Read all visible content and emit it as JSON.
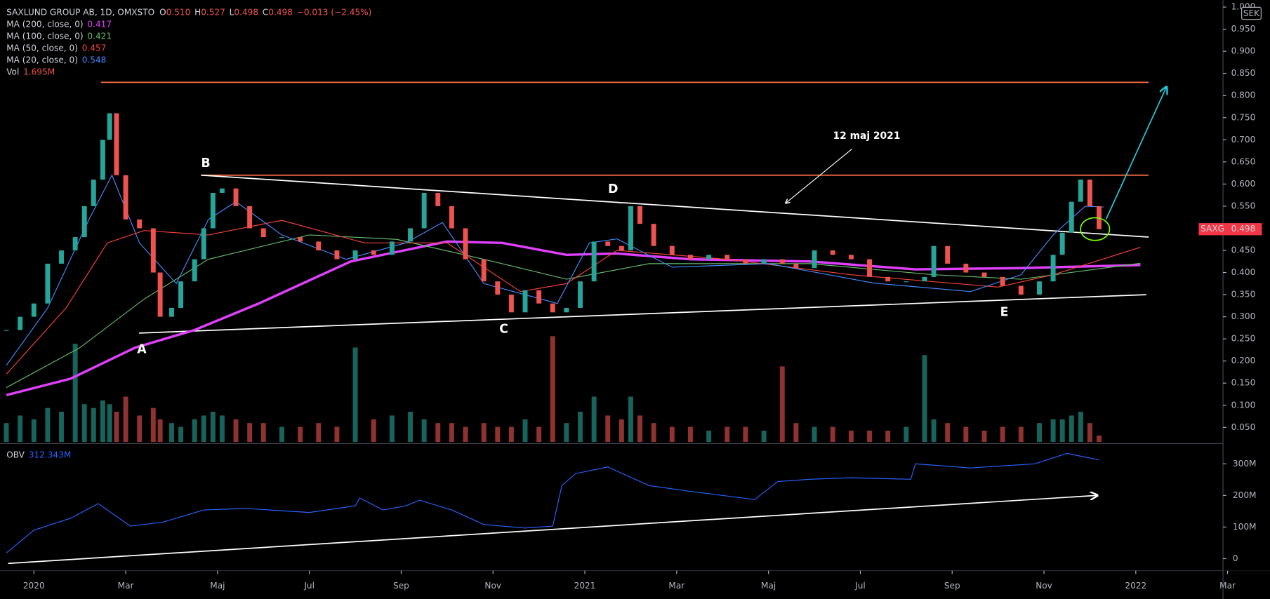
{
  "header": {
    "title": "SAXLUND GROUP AB, 1D, OMXSTO",
    "ohlc": [
      {
        "key": "O",
        "value": "0.510"
      },
      {
        "key": "H",
        "value": "0.527"
      },
      {
        "key": "L",
        "value": "0.498"
      },
      {
        "key": "C",
        "value": "0.498"
      }
    ],
    "change": "−0.013 (−2.45%)"
  },
  "annotations": {
    "points": [
      "A",
      "B",
      "C",
      "D",
      "E"
    ],
    "note": "12 maj 2021"
  },
  "chart_data": [
    {
      "type": "candlestick",
      "symbol": "SAXG",
      "currency": "SEK",
      "last_label": "0.498",
      "up_color": "#26a69a",
      "down_color": "#ef5350",
      "x": [
        -0.6,
        -0.3,
        0,
        0.3,
        0.6,
        0.9,
        1.1,
        1.3,
        1.5,
        1.65,
        1.8,
        2.0,
        2.3,
        2.6,
        2.75,
        3.0,
        3.2,
        3.5,
        3.7,
        3.9,
        4.1,
        4.4,
        4.7,
        5.0,
        5.4,
        5.8,
        6.2,
        6.6,
        7.0,
        7.4,
        7.8,
        8.2,
        8.5,
        8.8,
        9.1,
        9.4,
        9.8,
        10.1,
        10.4,
        10.7,
        11.0,
        11.3,
        11.6,
        11.9,
        12.2,
        12.5,
        12.8,
        13.0,
        13.2,
        13.5,
        13.9,
        14.3,
        14.7,
        15.1,
        15.5,
        15.9,
        16.3,
        16.6,
        17.0,
        17.4,
        17.8,
        18.2,
        18.6,
        19.0,
        19.4,
        19.6,
        19.9,
        20.3,
        20.7,
        21.1,
        21.5,
        21.9,
        22.2,
        22.4,
        22.6,
        22.8,
        23.0,
        23.2
      ],
      "values": [
        0.27,
        0.3,
        0.33,
        0.42,
        0.45,
        0.48,
        0.55,
        0.61,
        0.7,
        0.76,
        0.62,
        0.52,
        0.5,
        0.4,
        0.3,
        0.32,
        0.38,
        0.43,
        0.5,
        0.58,
        0.59,
        0.55,
        0.5,
        0.48,
        0.48,
        0.47,
        0.45,
        0.43,
        0.45,
        0.44,
        0.47,
        0.5,
        0.58,
        0.55,
        0.5,
        0.43,
        0.38,
        0.35,
        0.31,
        0.36,
        0.33,
        0.31,
        0.32,
        0.38,
        0.47,
        0.46,
        0.45,
        0.55,
        0.51,
        0.46,
        0.44,
        0.43,
        0.44,
        0.43,
        0.42,
        0.43,
        0.42,
        0.41,
        0.45,
        0.44,
        0.43,
        0.39,
        0.38,
        0.38,
        0.39,
        0.46,
        0.42,
        0.4,
        0.39,
        0.37,
        0.35,
        0.38,
        0.44,
        0.49,
        0.56,
        0.61,
        0.55,
        0.498
      ],
      "volume": {
        "name": "Vol",
        "last_label": "1.695M",
        "ylim": [
          0,
          30
        ],
        "values": [
          5,
          7,
          6,
          9,
          8,
          26,
          10,
          9,
          11,
          10,
          8,
          12,
          7,
          9,
          6,
          5,
          4,
          6,
          7,
          8,
          7,
          6,
          5,
          5,
          4,
          4,
          5,
          4,
          25,
          6,
          7,
          8,
          6,
          5,
          5,
          4,
          5,
          4,
          4,
          6,
          4,
          28,
          5,
          8,
          12,
          7,
          6,
          12,
          7,
          5,
          4,
          4,
          3,
          4,
          4,
          3,
          20,
          5,
          4,
          4,
          3,
          3,
          3,
          4,
          23,
          6,
          5,
          4,
          3,
          4,
          4,
          5,
          6,
          6,
          7,
          8,
          5,
          1.695
        ]
      },
      "series": [
        {
          "name": "MA (200, close, 0)",
          "color": "#e040fb",
          "width": 3,
          "last_label": "0.417",
          "x": [
            -0.6,
            0.8,
            2.2,
            3.5,
            4.9,
            6.9,
            9.0,
            10.2,
            11.6,
            12.7,
            14.3,
            16.9,
            19.2,
            21.5,
            24.1
          ],
          "values": [
            0.123,
            0.16,
            0.23,
            0.27,
            0.33,
            0.425,
            0.47,
            0.467,
            0.44,
            0.443,
            0.43,
            0.425,
            0.407,
            0.41,
            0.417
          ]
        },
        {
          "name": "MA (100, close, 0)",
          "color": "#66bb6a",
          "width": 1,
          "last_label": "0.421",
          "x": [
            -0.6,
            1.0,
            2.4,
            3.8,
            6.0,
            7.9,
            9.8,
            11.6,
            13.4,
            16.9,
            19.6,
            21.5,
            24.1
          ],
          "values": [
            0.14,
            0.23,
            0.34,
            0.43,
            0.485,
            0.475,
            0.43,
            0.385,
            0.42,
            0.42,
            0.395,
            0.385,
            0.421
          ]
        },
        {
          "name": "MA (50, close, 0)",
          "color": "#f44336",
          "width": 1,
          "last_label": "0.457",
          "x": [
            -0.6,
            0.7,
            1.6,
            2.4,
            3.8,
            5.4,
            7.2,
            9.0,
            10.6,
            11.6,
            12.7,
            15.1,
            17.8,
            21.0,
            22.2,
            24.1
          ],
          "values": [
            0.17,
            0.32,
            0.467,
            0.495,
            0.485,
            0.518,
            0.467,
            0.467,
            0.357,
            0.375,
            0.45,
            0.43,
            0.395,
            0.367,
            0.395,
            0.457
          ]
        },
        {
          "name": "MA (20, close, 0)",
          "color": "#448aff",
          "width": 1,
          "last_label": "0.548",
          "x": [
            -0.6,
            0.3,
            1.2,
            1.7,
            2.3,
            3.1,
            3.8,
            4.4,
            5.4,
            6.8,
            8.1,
            8.9,
            9.8,
            11.4,
            12.1,
            12.7,
            13.9,
            16.0,
            18.3,
            20.4,
            21.5,
            22.2,
            22.9,
            23.3
          ],
          "values": [
            0.19,
            0.32,
            0.52,
            0.62,
            0.467,
            0.375,
            0.52,
            0.56,
            0.485,
            0.43,
            0.467,
            0.513,
            0.375,
            0.33,
            0.467,
            0.476,
            0.412,
            0.42,
            0.376,
            0.357,
            0.395,
            0.485,
            0.55,
            0.548
          ]
        }
      ],
      "lines": [
        {
          "color": "#ff7043",
          "x": [
            1.46,
            24.28
          ],
          "values": [
            0.83,
            0.83
          ]
        },
        {
          "color": "#ff7043",
          "x": [
            3.64,
            24.28
          ],
          "values": [
            0.62,
            0.62
          ]
        },
        {
          "color": "#ffffff",
          "x": [
            3.64,
            24.28
          ],
          "values": [
            0.62,
            0.48
          ]
        },
        {
          "color": "#ffffff",
          "x": [
            2.29,
            24.23
          ],
          "values": [
            0.263,
            0.35
          ]
        },
        {
          "color": "#26c6da",
          "arrow": true,
          "x": [
            23.35,
            24.67
          ],
          "values": [
            0.52,
            0.82
          ]
        }
      ],
      "xlim": [
        -0.65,
        25.9
      ],
      "ylim": [
        0.017,
        1.016
      ],
      "xticks": [
        {
          "value": 0,
          "label": "2020"
        },
        {
          "value": 2,
          "label": "Mar"
        },
        {
          "value": 4,
          "label": "Maj"
        },
        {
          "value": 6,
          "label": "Jul"
        },
        {
          "value": 8,
          "label": "Sep"
        },
        {
          "value": 10,
          "label": "Nov"
        },
        {
          "value": 12,
          "label": "2021"
        },
        {
          "value": 14,
          "label": "Mar"
        },
        {
          "value": 16,
          "label": "Maj"
        },
        {
          "value": 18,
          "label": "Jul"
        },
        {
          "value": 20,
          "label": "Sep"
        },
        {
          "value": 22,
          "label": "Nov"
        },
        {
          "value": 24,
          "label": "2022"
        },
        {
          "value": 26,
          "label": "Mar"
        }
      ],
      "yticks": [
        {
          "value": 0.05,
          "label": "0.050"
        },
        {
          "value": 0.1,
          "label": "0.100"
        },
        {
          "value": 0.15,
          "label": "0.150"
        },
        {
          "value": 0.2,
          "label": "0.200"
        },
        {
          "value": 0.25,
          "label": "0.250"
        },
        {
          "value": 0.3,
          "label": "0.300"
        },
        {
          "value": 0.35,
          "label": "0.350"
        },
        {
          "value": 0.4,
          "label": "0.400"
        },
        {
          "value": 0.45,
          "label": "0.450"
        },
        {
          "value": 0.5,
          "label": "0.500"
        },
        {
          "value": 0.55,
          "label": "0.550"
        },
        {
          "value": 0.6,
          "label": "0.600"
        },
        {
          "value": 0.65,
          "label": "0.650"
        },
        {
          "value": 0.7,
          "label": "0.700"
        },
        {
          "value": 0.75,
          "label": "0.750"
        },
        {
          "value": 0.8,
          "label": "0.800"
        },
        {
          "value": 0.85,
          "label": "0.850"
        },
        {
          "value": 0.9,
          "label": "0.900"
        },
        {
          "value": 0.95,
          "label": "0.950"
        },
        {
          "value": 1.0,
          "label": "1.000"
        }
      ]
    },
    {
      "type": "line",
      "xlim": [
        -0.65,
        25.9
      ],
      "ylim": [
        -38,
        364
      ],
      "yticks": [
        0,
        {
          "value": 100,
          "label": "100M"
        },
        {
          "value": 200,
          "label": "200M"
        },
        {
          "value": 300,
          "label": "300M"
        }
      ],
      "series": [
        {
          "name": "OBV",
          "color": "#2962ff",
          "width": 1,
          "last_label": "312.343M",
          "x": [
            -0.6,
            0,
            0.8,
            1.4,
            2.1,
            2.8,
            3.7,
            4.6,
            6.0,
            7.0,
            7.1,
            7.6,
            8.1,
            8.4,
            9.1,
            9.8,
            10.7,
            11.3,
            11.5,
            11.8,
            12.5,
            13.4,
            14.3,
            15.7,
            16.2,
            16.9,
            17.8,
            19.1,
            19.2,
            20.4,
            21.8,
            22.5,
            23.2
          ],
          "values": [
            18,
            90,
            128,
            174,
            103,
            115,
            154,
            159,
            146,
            167,
            192,
            154,
            167,
            185,
            154,
            108,
            97,
            103,
            231,
            269,
            290,
            231,
            213,
            187,
            244,
            251,
            256,
            251,
            300,
            287,
            300,
            333,
            312.343
          ]
        }
      ],
      "lines": [
        {
          "color": "#ffffff",
          "arrow": true,
          "x": [
            -0.56,
            23.17
          ],
          "values": [
            -15,
            200
          ]
        }
      ]
    }
  ]
}
